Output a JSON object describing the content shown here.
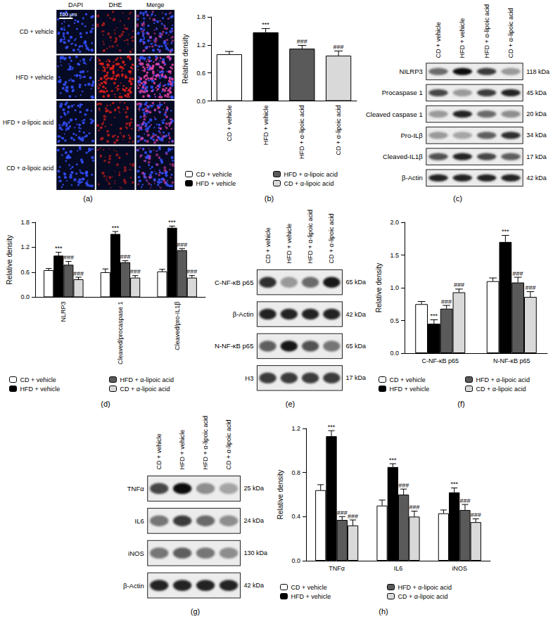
{
  "chart_data": [
    {
      "caption": "(b)",
      "type": "bar",
      "y_label": "Relative density",
      "categories": [
        "CD + vehicle",
        "HFD + vehicle",
        "HFD + α-lipoic acid",
        "CD + α-lipoic acid"
      ],
      "values": [
        1.0,
        1.47,
        1.12,
        0.97
      ],
      "errors": [
        0.06,
        0.08,
        0.07,
        0.1
      ],
      "colors": [
        "#ffffff",
        "#000000",
        "#5a5a5a",
        "#d9d9d9"
      ],
      "annotations": [
        null,
        "***",
        "###",
        "###"
      ],
      "ylim": [
        0,
        1.8
      ],
      "yticks": [
        {
          "value": 0,
          "label": "0.0"
        },
        0.6,
        1.2,
        1.8
      ],
      "grid": false,
      "legend": "bottom"
    },
    {
      "caption": "(d)",
      "type": "bar",
      "y_label": "Relative density",
      "categories": [
        "NLRP3",
        "Cleaved/procaspase 1",
        "Cleaved/pro-IL1β"
      ],
      "series": [
        {
          "name": "CD + vehicle",
          "color": "#ffffff",
          "values": [
            0.65,
            0.6,
            0.62
          ],
          "errors": [
            0.04,
            0.08,
            0.05
          ],
          "annotation": null
        },
        {
          "name": "HFD + vehicle",
          "color": "#000000",
          "values": [
            1.0,
            1.52,
            1.67
          ],
          "errors": [
            0.08,
            0.06,
            0.04
          ],
          "annotation": "***"
        },
        {
          "name": "HFD + α-lipoic acid",
          "color": "#5a5a5a",
          "values": [
            0.78,
            0.84,
            1.13
          ],
          "errors": [
            0.08,
            0.04,
            0.04
          ],
          "annotation": "###"
        },
        {
          "name": "CD + α-lipoic acid",
          "color": "#d9d9d9",
          "values": [
            0.43,
            0.47,
            0.47
          ],
          "errors": [
            0.05,
            0.05,
            0.05
          ],
          "annotation": "###"
        }
      ],
      "ylim": [
        0,
        1.8
      ],
      "yticks": [
        {
          "value": 0,
          "label": "0.0"
        },
        0.6,
        1.2,
        1.8
      ],
      "grid": false,
      "legend": "bottom"
    },
    {
      "caption": "(f)",
      "type": "bar",
      "y_label": "Relative density",
      "categories": [
        "C-NF-κB p65",
        "N-NF-κB p65"
      ],
      "series": [
        {
          "name": "CD + vehicle",
          "color": "#ffffff",
          "values": [
            0.75,
            1.1
          ],
          "errors": [
            0.04,
            0.05
          ],
          "annotation": null
        },
        {
          "name": "HFD + vehicle",
          "color": "#000000",
          "values": [
            0.45,
            1.7
          ],
          "errors": [
            0.06,
            0.1
          ],
          "annotation": "***"
        },
        {
          "name": "HFD + α-lipoic acid",
          "color": "#5a5a5a",
          "values": [
            0.68,
            1.08
          ],
          "errors": [
            0.05,
            0.08
          ],
          "annotation": "###"
        },
        {
          "name": "CD + α-lipoic acid",
          "color": "#d9d9d9",
          "values": [
            0.93,
            0.86
          ],
          "errors": [
            0.05,
            0.08
          ],
          "annotation": "###"
        }
      ],
      "ylim": [
        0,
        2
      ],
      "yticks": [
        {
          "value": 0,
          "label": "0.0"
        },
        0.5,
        {
          "value": 1,
          "label": "1.0"
        },
        1.5,
        {
          "value": 2,
          "label": "2.0"
        }
      ],
      "grid": false,
      "legend": "bottom"
    },
    {
      "caption": "(h)",
      "type": "bar",
      "y_label": "Relative density",
      "categories": [
        "TNFα",
        "IL6",
        "iNOS"
      ],
      "series": [
        {
          "name": "CD + vehicle",
          "color": "#ffffff",
          "values": [
            0.64,
            0.5,
            0.43
          ],
          "errors": [
            0.05,
            0.05,
            0.03
          ],
          "annotation": null
        },
        {
          "name": "HFD + vehicle",
          "color": "#000000",
          "values": [
            1.13,
            0.85,
            0.62
          ],
          "errors": [
            0.05,
            0.03,
            0.04
          ],
          "annotation": "***"
        },
        {
          "name": "HFD + α-lipoic acid",
          "color": "#5a5a5a",
          "values": [
            0.37,
            0.6,
            0.46
          ],
          "errors": [
            0.03,
            0.05,
            0.05
          ],
          "annotation": "###"
        },
        {
          "name": "CD + α-lipoic acid",
          "color": "#d9d9d9",
          "values": [
            0.32,
            0.4,
            0.35
          ],
          "errors": [
            0.05,
            0.05,
            0.03
          ],
          "annotation": "###"
        }
      ],
      "ylim": [
        0,
        1.2
      ],
      "yticks": [
        {
          "value": 0,
          "label": "0.0"
        },
        0.4,
        0.8,
        1.2
      ],
      "grid": false,
      "legend": "bottom"
    }
  ],
  "micrograph": {
    "caption": "(a)",
    "columns": [
      "DAPI",
      "DHE",
      "Merge"
    ],
    "scale_bar": "100 μm",
    "rows": [
      {
        "label": "CD + vehicle",
        "dhe_signal": 0.4
      },
      {
        "label": "HFD + vehicle",
        "dhe_signal": 0.9
      },
      {
        "label": "HFD + α-lipoic acid",
        "dhe_signal": 0.55
      },
      {
        "label": "CD + α-lipoic acid",
        "dhe_signal": 0.35
      }
    ]
  },
  "blots": [
    {
      "caption": "(c)",
      "lanes": [
        "CD + vehicle",
        "HFD + vehicle",
        "HFD + α-lipoic acid",
        "CD + α-lipoic acid"
      ],
      "rows": [
        {
          "label": "NILRP3",
          "size": "118 kDa",
          "intensity": [
            0.55,
            0.95,
            0.75,
            0.35
          ]
        },
        {
          "label": "Procaspase 1",
          "size": "45 kDa",
          "intensity": [
            0.7,
            0.35,
            0.75,
            0.85
          ]
        },
        {
          "label": "Cleaved caspase 1",
          "size": "20 kDa",
          "intensity": [
            0.35,
            0.85,
            0.55,
            0.4
          ]
        },
        {
          "label": "Pro-ILβ",
          "size": "34 kDa",
          "intensity": [
            0.35,
            0.3,
            0.6,
            0.8
          ]
        },
        {
          "label": "Cleaved-IL1β",
          "size": "17 kDa",
          "intensity": [
            0.65,
            0.85,
            0.7,
            0.6
          ]
        },
        {
          "label": "β-Actin",
          "size": "42 kDa",
          "intensity": [
            0.85,
            0.85,
            0.85,
            0.85
          ]
        }
      ]
    },
    {
      "caption": "(e)",
      "lanes": [
        "CD + vehicle",
        "HFD + vehicle",
        "HFD + α-lipoic acid",
        "CD + α-lipoic acid"
      ],
      "rows": [
        {
          "label": "C-NF-κB p65",
          "size": "65 kDa",
          "intensity": [
            0.8,
            0.35,
            0.55,
            0.9
          ]
        },
        {
          "label": "β-Actin",
          "size": "42 kDa",
          "intensity": [
            0.85,
            0.85,
            0.85,
            0.85
          ]
        },
        {
          "label": "N-NF-κB p65",
          "size": "65 kDa",
          "intensity": [
            0.6,
            0.9,
            0.65,
            0.5
          ]
        },
        {
          "label": "H3",
          "size": "17 kDa",
          "intensity": [
            0.75,
            0.75,
            0.75,
            0.75
          ]
        }
      ]
    },
    {
      "caption": "(g)",
      "lanes": [
        "CD + vehicle",
        "HFD + vehicle",
        "HFD + α-lipoic acid",
        "CD + α-lipoic acid"
      ],
      "rows": [
        {
          "label": "TNFα",
          "size": "25 kDa",
          "intensity": [
            0.7,
            0.95,
            0.4,
            0.3
          ]
        },
        {
          "label": "IL6",
          "size": "24 kDa",
          "intensity": [
            0.5,
            0.75,
            0.55,
            0.4
          ]
        },
        {
          "label": "iNOS",
          "size": "130 kDa",
          "intensity": [
            0.5,
            0.6,
            0.5,
            0.4
          ]
        },
        {
          "label": "β-Actin",
          "size": "42 kDa",
          "intensity": [
            0.85,
            0.85,
            0.85,
            0.85
          ]
        }
      ]
    }
  ]
}
